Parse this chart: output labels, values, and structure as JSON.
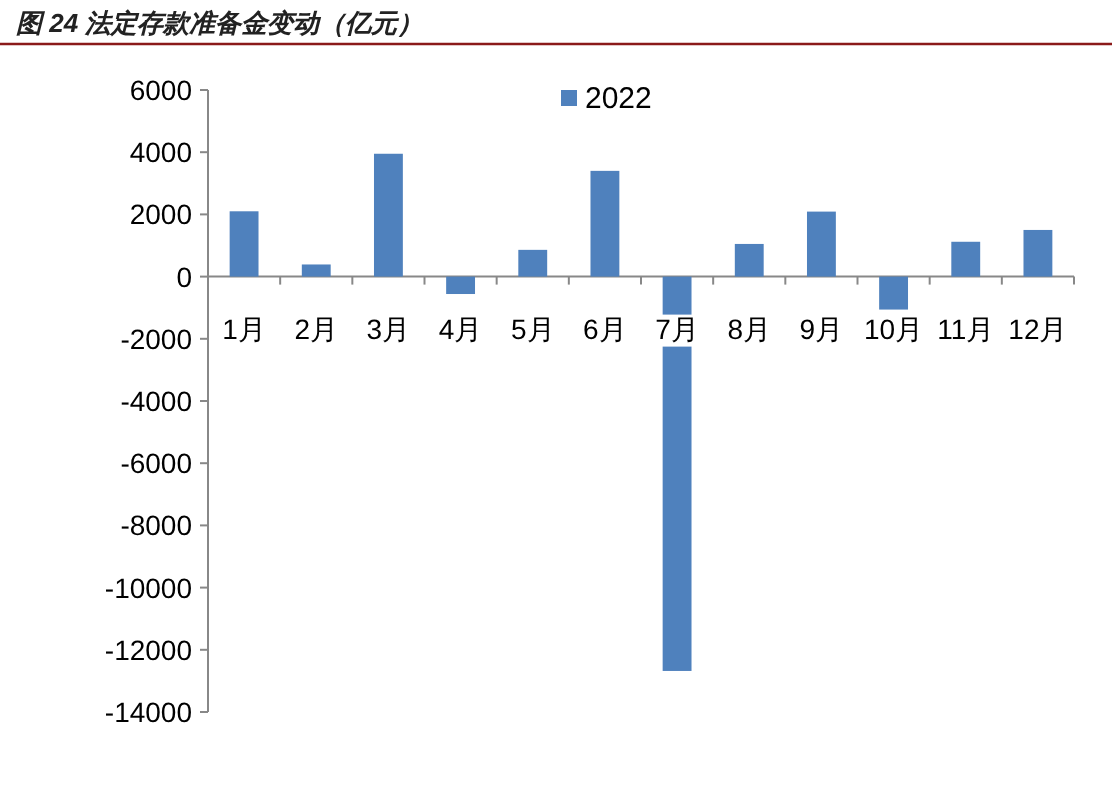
{
  "chart_data": {
    "type": "bar",
    "title": "图 24 法定存款准备金变动（亿元）",
    "categories": [
      "1月",
      "2月",
      "3月",
      "4月",
      "5月",
      "6月",
      "7月",
      "8月",
      "9月",
      "10月",
      "11月",
      "12月"
    ],
    "series": [
      {
        "name": "2022",
        "color": "#4f81bd",
        "values": [
          2100,
          390,
          3950,
          -560,
          860,
          3400,
          -12680,
          1050,
          2090,
          -1060,
          1120,
          1500
        ]
      }
    ],
    "ylim": [
      -14000,
      6000
    ],
    "yticks": [
      -14000,
      -12000,
      -10000,
      -8000,
      -6000,
      -4000,
      -2000,
      0,
      2000,
      4000,
      6000
    ],
    "grid": false,
    "legend": "top"
  }
}
